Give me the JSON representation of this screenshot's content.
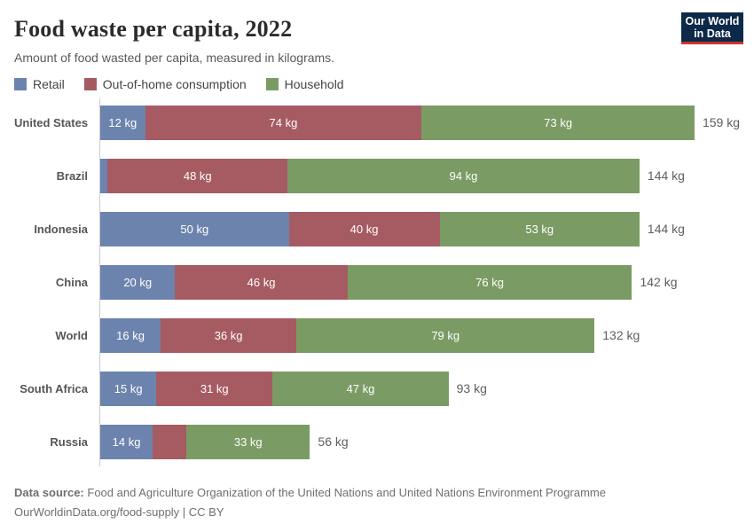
{
  "header": {
    "title": "Food waste per capita, 2022",
    "subtitle": "Amount of food wasted per capita, measured in kilograms.",
    "logo_line1": "Our World",
    "logo_line2": "in Data",
    "logo_bg": "#0d2949",
    "logo_accent": "#cc342c"
  },
  "chart_data": {
    "type": "bar",
    "stacked": true,
    "orientation": "horizontal",
    "title": "Food waste per capita, 2022",
    "unit": "kg",
    "xmax": 159,
    "grid": false,
    "legend_position": "top",
    "categories": [
      "United States",
      "Brazil",
      "Indonesia",
      "China",
      "World",
      "South Africa",
      "Russia"
    ],
    "series": [
      {
        "name": "Retail",
        "color": "#6c84ad",
        "values": [
          12,
          2,
          50,
          20,
          16,
          15,
          14
        ]
      },
      {
        "name": "Out-of-home consumption",
        "color": "#a65b62",
        "values": [
          74,
          48,
          40,
          46,
          36,
          31,
          9
        ]
      },
      {
        "name": "Household",
        "color": "#7b9b64",
        "values": [
          73,
          94,
          53,
          76,
          79,
          47,
          33
        ]
      }
    ],
    "totals": [
      159,
      144,
      144,
      142,
      132,
      93,
      56
    ],
    "segment_labels": [
      [
        "12 kg",
        "74 kg",
        "73 kg"
      ],
      [
        "",
        "48 kg",
        "94 kg"
      ],
      [
        "50 kg",
        "40 kg",
        "53 kg"
      ],
      [
        "20 kg",
        "46 kg",
        "76 kg"
      ],
      [
        "16 kg",
        "36 kg",
        "79 kg"
      ],
      [
        "15 kg",
        "31 kg",
        "47 kg"
      ],
      [
        "14 kg",
        "",
        "33 kg"
      ]
    ],
    "total_labels": [
      "159 kg",
      "144 kg",
      "144 kg",
      "142 kg",
      "132 kg",
      "93 kg",
      "56 kg"
    ]
  },
  "footer": {
    "source_label": "Data source:",
    "source_text": "Food and Agriculture Organization of the United Nations and United Nations Environment Programme",
    "link_text": "OurWorldinData.org/food-supply | CC BY"
  }
}
